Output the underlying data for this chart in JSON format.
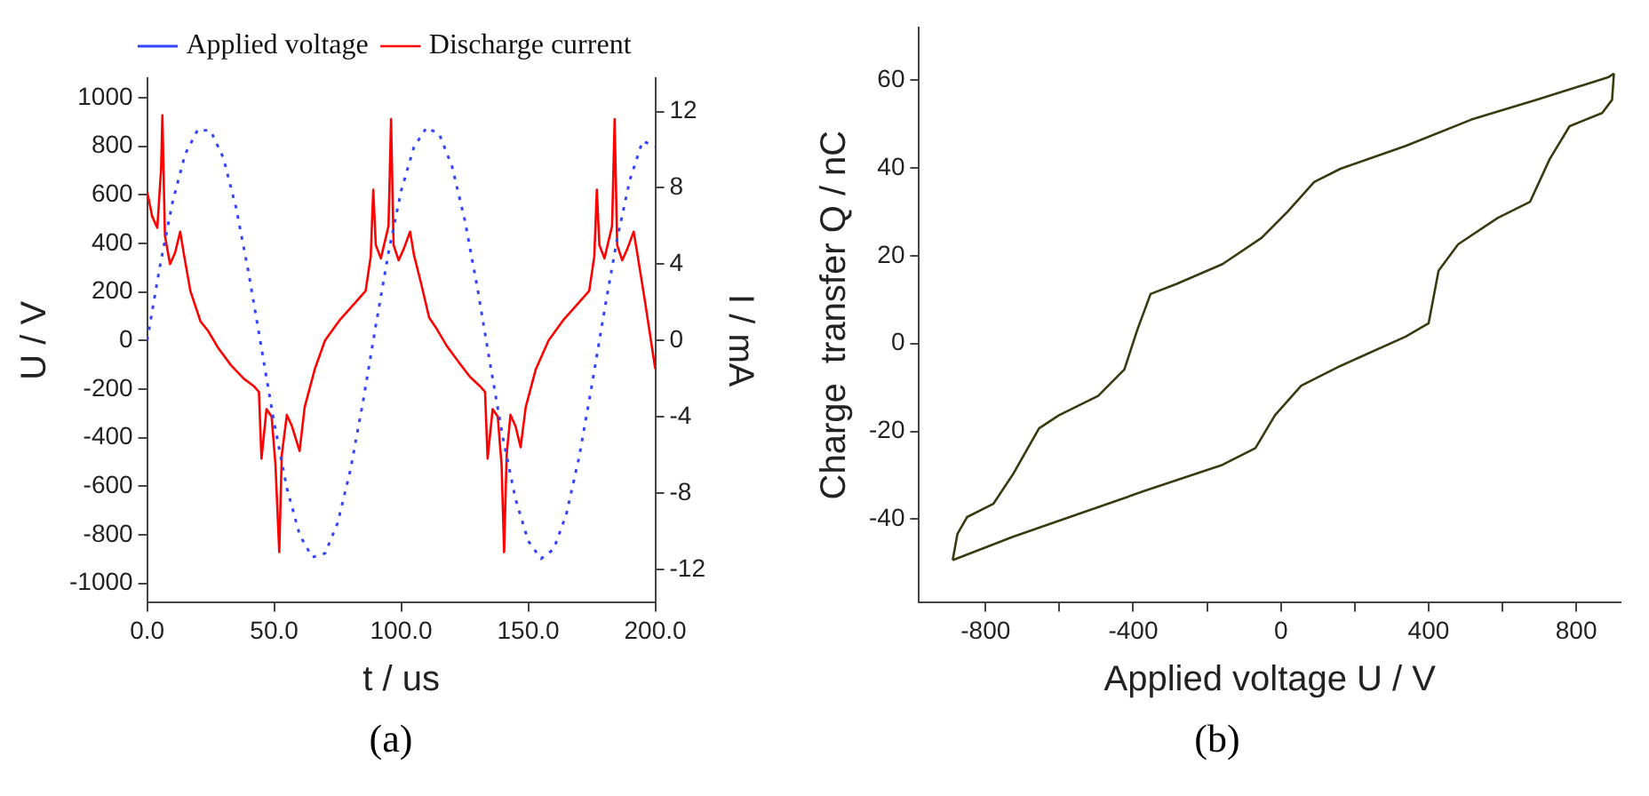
{
  "chart_data": [
    {
      "type": "line",
      "xlabel": "t / us",
      "ylabel": "U / V",
      "y2label": "I / mA",
      "legend": "top",
      "grid": false,
      "marker": "none",
      "xlim": [
        0,
        200
      ],
      "xticks": [
        {
          "value": 0,
          "label": "0.0"
        },
        {
          "value": 50,
          "label": "50.0"
        },
        {
          "value": 100,
          "label": "100.0"
        },
        {
          "value": 150,
          "label": "150.0"
        },
        {
          "value": 200,
          "label": "200.0"
        }
      ],
      "ylim": [
        -1080,
        1080
      ],
      "yticks": [
        -1000,
        -800,
        -600,
        -400,
        -200,
        0,
        200,
        400,
        600,
        800,
        1000
      ],
      "y2lim": [
        -13.75,
        13.75
      ],
      "y2ticks": [
        -12,
        -8,
        -4,
        0,
        4,
        8,
        12
      ],
      "annotations": [
        "(a)"
      ],
      "series": [
        {
          "name": "Applied voltage",
          "color": "#3344ff",
          "line_style": "dotted",
          "x": [
            0,
            5,
            10,
            15,
            20,
            25,
            30,
            35,
            40,
            45,
            50,
            55,
            60,
            65,
            70,
            75,
            80,
            85,
            90,
            95,
            100,
            105,
            110,
            115,
            120,
            125,
            130,
            135,
            140,
            145,
            150,
            155,
            160,
            165,
            170,
            175,
            180,
            185,
            190,
            195,
            200
          ],
          "values": [
            0,
            304,
            570,
            768,
            869,
            863,
            752,
            547,
            275,
            -32,
            -340,
            -608,
            -800,
            -893,
            -877,
            -751,
            -534,
            -251,
            61,
            362,
            617,
            796,
            877,
            849,
            717,
            497,
            216,
            -96,
            -399,
            -653,
            -826,
            -899,
            -860,
            -715,
            -482,
            -187,
            124,
            419,
            661,
            821,
            800
          ]
        },
        {
          "name": "Discharge current",
          "color": "#ff0000",
          "line_style": "solid",
          "axis": "y2",
          "x": [
            0,
            2,
            4,
            5.5,
            6,
            7,
            9,
            11,
            13,
            14.5,
            17,
            21,
            24,
            28,
            33,
            38,
            42,
            44,
            45,
            47,
            49,
            50.5,
            52,
            53,
            55,
            57,
            60,
            62,
            66,
            70,
            76,
            82,
            86,
            88,
            89,
            90,
            92,
            95,
            96,
            97,
            99,
            101,
            103.5,
            105,
            108,
            111,
            114,
            118,
            123,
            127,
            131,
            133,
            134,
            136,
            138,
            139.5,
            140.5,
            141.5,
            143,
            145,
            147,
            149,
            153,
            158,
            164,
            170,
            174,
            176,
            177,
            178,
            180,
            183,
            184,
            185,
            187,
            189,
            191.5,
            193,
            196,
            200
          ],
          "values": [
            7.8,
            6.5,
            5.9,
            9.0,
            11.8,
            5.5,
            4.0,
            4.6,
            5.7,
            4.5,
            2.6,
            1.0,
            0.5,
            -0.4,
            -1.3,
            -2.0,
            -2.4,
            -2.7,
            -6.2,
            -3.6,
            -4.0,
            -6.5,
            -11.1,
            -6.0,
            -3.9,
            -4.5,
            -5.8,
            -3.5,
            -1.5,
            0.0,
            1.1,
            2.0,
            2.6,
            4.4,
            7.9,
            5.0,
            4.3,
            6.0,
            11.6,
            5.0,
            4.2,
            4.8,
            5.7,
            4.5,
            2.9,
            1.2,
            0.6,
            -0.3,
            -1.2,
            -1.9,
            -2.4,
            -2.7,
            -6.2,
            -3.6,
            -4.0,
            -6.5,
            -11.1,
            -6.0,
            -3.9,
            -4.5,
            -5.6,
            -3.5,
            -1.5,
            0.0,
            1.1,
            2.0,
            2.6,
            4.4,
            7.9,
            5.0,
            4.3,
            6.0,
            11.6,
            5.0,
            4.2,
            4.8,
            5.7,
            4.5,
            2.0,
            -1.5
          ]
        }
      ]
    },
    {
      "type": "line",
      "xlabel": "Applied voltage U / V",
      "ylabel": "Charge  transfer Q / nC",
      "legend": false,
      "grid": false,
      "marker": "none",
      "xlim": [
        -980,
        920
      ],
      "xticks": [
        -800,
        {
          "value": -600,
          "label": null
        },
        -400,
        {
          "value": -200,
          "label": null
        },
        0,
        {
          "value": 200,
          "label": null
        },
        400,
        {
          "value": 600,
          "label": null
        },
        800
      ],
      "ylim": [
        -59,
        72
      ],
      "yticks": [
        -40,
        -20,
        0,
        20,
        40,
        60
      ],
      "annotations": [
        "(b)"
      ],
      "series": [
        {
          "color": "#3a3a10",
          "line_style": "solid",
          "x": [
            -889,
            -876,
            -850,
            -779,
            -726,
            -655,
            -601,
            -495,
            -424,
            -389,
            -353,
            -282,
            -158,
            -52,
            19,
            90,
            161,
            338,
            516,
            693,
            888,
            902
          ],
          "values": [
            -49.3,
            -43.3,
            -39.5,
            -36.5,
            -29.8,
            -19.3,
            -16.3,
            -11.9,
            -5.9,
            3.1,
            11.3,
            13.6,
            18.1,
            24.1,
            30.1,
            36.8,
            39.8,
            45.0,
            51.0,
            55.5,
            60.7,
            61.5
          ]
        },
        {
          "color": "#3a3a10",
          "line_style": "solid",
          "x": [
            -889,
            -726,
            -548,
            -371,
            -158,
            -69,
            -16,
            55,
            161,
            338,
            400,
            427,
            480,
            587,
            675,
            728,
            782,
            870,
            897,
            902
          ],
          "values": [
            -49.3,
            -44.0,
            -38.8,
            -33.6,
            -27.6,
            -23.8,
            -16.3,
            -9.6,
            -5.1,
            1.6,
            4.6,
            16.6,
            22.6,
            28.6,
            32.3,
            42.0,
            49.5,
            52.5,
            55.5,
            61.5
          ]
        }
      ]
    }
  ]
}
